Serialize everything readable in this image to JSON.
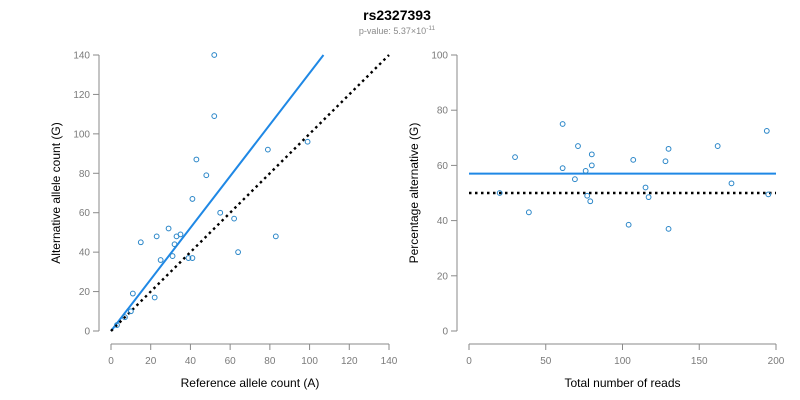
{
  "header": {
    "title": "rs2327393",
    "subtitle_prefix": "p-value: 5.37×10",
    "subtitle_exponent": "-11"
  },
  "colors": {
    "points": "#2a86c8",
    "fit_line": "#1f88e5",
    "reference_line": "#000000",
    "axis": "#8a8a8a"
  },
  "chart_data": [
    {
      "type": "scatter",
      "xlabel": "Reference allele count (A)",
      "ylabel": "Alternative allele count (G)",
      "xlim": [
        0,
        140
      ],
      "ylim": [
        0,
        140
      ],
      "xticks": [
        0,
        20,
        40,
        60,
        80,
        100,
        120,
        140
      ],
      "yticks": [
        0,
        20,
        40,
        60,
        80,
        100,
        120,
        140
      ],
      "grid": false,
      "points": [
        [
          3,
          3
        ],
        [
          7,
          7
        ],
        [
          10,
          10
        ],
        [
          11,
          19
        ],
        [
          15,
          45
        ],
        [
          22,
          17
        ],
        [
          23,
          48
        ],
        [
          25,
          36
        ],
        [
          29,
          52
        ],
        [
          31,
          38
        ],
        [
          32,
          44
        ],
        [
          33,
          48
        ],
        [
          35,
          49
        ],
        [
          39,
          37
        ],
        [
          41,
          37
        ],
        [
          41,
          67
        ],
        [
          43,
          87
        ],
        [
          48,
          79
        ],
        [
          52,
          140
        ],
        [
          52,
          109
        ],
        [
          55,
          60
        ],
        [
          62,
          57
        ],
        [
          64,
          40
        ],
        [
          79,
          92
        ],
        [
          83,
          48
        ],
        [
          99,
          96
        ]
      ],
      "lines": [
        {
          "name": "fit",
          "style": "solid",
          "from": [
            0,
            0
          ],
          "to": [
            107,
            140
          ]
        },
        {
          "name": "reference",
          "style": "dotted",
          "from": [
            0,
            0
          ],
          "to": [
            140,
            140
          ]
        }
      ]
    },
    {
      "type": "scatter",
      "xlabel": "Total number of reads",
      "ylabel": "Percentage alternative (G)",
      "xlim": [
        0,
        200
      ],
      "ylim": [
        0,
        100
      ],
      "xticks": [
        0,
        50,
        100,
        150,
        200
      ],
      "yticks": [
        0,
        20,
        40,
        60,
        80,
        100
      ],
      "grid": false,
      "points": [
        [
          20,
          50
        ],
        [
          30,
          63
        ],
        [
          39,
          43
        ],
        [
          61,
          75
        ],
        [
          61,
          59
        ],
        [
          69,
          55
        ],
        [
          71,
          67
        ],
        [
          76,
          58
        ],
        [
          77,
          49
        ],
        [
          79,
          47
        ],
        [
          80,
          60
        ],
        [
          80,
          64
        ],
        [
          104,
          38.5
        ],
        [
          107,
          62
        ],
        [
          115,
          52
        ],
        [
          117,
          48.5
        ],
        [
          128,
          61.5
        ],
        [
          130,
          66
        ],
        [
          130,
          37
        ],
        [
          162,
          67
        ],
        [
          171,
          53.5
        ],
        [
          194,
          72.5
        ],
        [
          195,
          49.5
        ]
      ],
      "lines": [
        {
          "name": "fit",
          "style": "solid",
          "from": [
            0,
            57
          ],
          "to": [
            200,
            57
          ]
        },
        {
          "name": "reference",
          "style": "dotted",
          "from": [
            0,
            50
          ],
          "to": [
            200,
            50
          ]
        }
      ]
    }
  ]
}
